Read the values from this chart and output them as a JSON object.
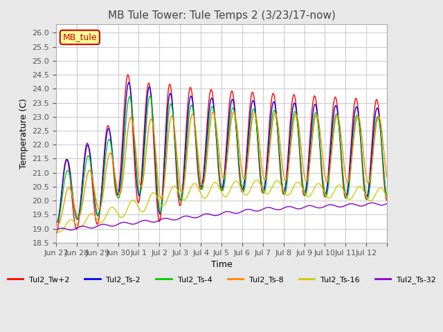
{
  "title": "MB Tule Tower: Tule Temps 2 (3/23/17-now)",
  "xlabel": "Time",
  "ylabel": "Temperature (C)",
  "ylim": [
    18.5,
    26.3
  ],
  "yticks": [
    18.5,
    19.0,
    19.5,
    20.0,
    20.5,
    21.0,
    21.5,
    22.0,
    22.5,
    23.0,
    23.5,
    24.0,
    24.5,
    25.0,
    25.5,
    26.0
  ],
  "xtick_positions": [
    0,
    1,
    2,
    3,
    4,
    5,
    6,
    7,
    8,
    9,
    10,
    11,
    12,
    13,
    14,
    15,
    16
  ],
  "xtick_labels": [
    "Jun 27",
    "Jun 28",
    "Jun 29",
    "Jun 30",
    "Jul 1",
    "Jul 2",
    "Jul 3",
    "Jul 4",
    "Jul 5",
    "Jul 6",
    "Jul 7",
    "Jul 8",
    "Jul 9",
    "Jul 10",
    "Jul 11",
    "Jul 12",
    ""
  ],
  "legend_label": "MB_tule",
  "series_names": [
    "Tul2_Tw+2",
    "Tul2_Ts-2",
    "Tul2_Ts-4",
    "Tul2_Ts-8",
    "Tul2_Ts-16",
    "Tul2_Ts-32"
  ],
  "series_colors": [
    "#ff0000",
    "#0000ff",
    "#00cc00",
    "#ff8800",
    "#cccc00",
    "#8800cc"
  ],
  "bg_color": "#e8e8e8",
  "plot_bg_color": "#ffffff",
  "grid_color": "#cccccc",
  "annotation_box_color": "#ffff99",
  "annotation_border_color": "#cc0000"
}
